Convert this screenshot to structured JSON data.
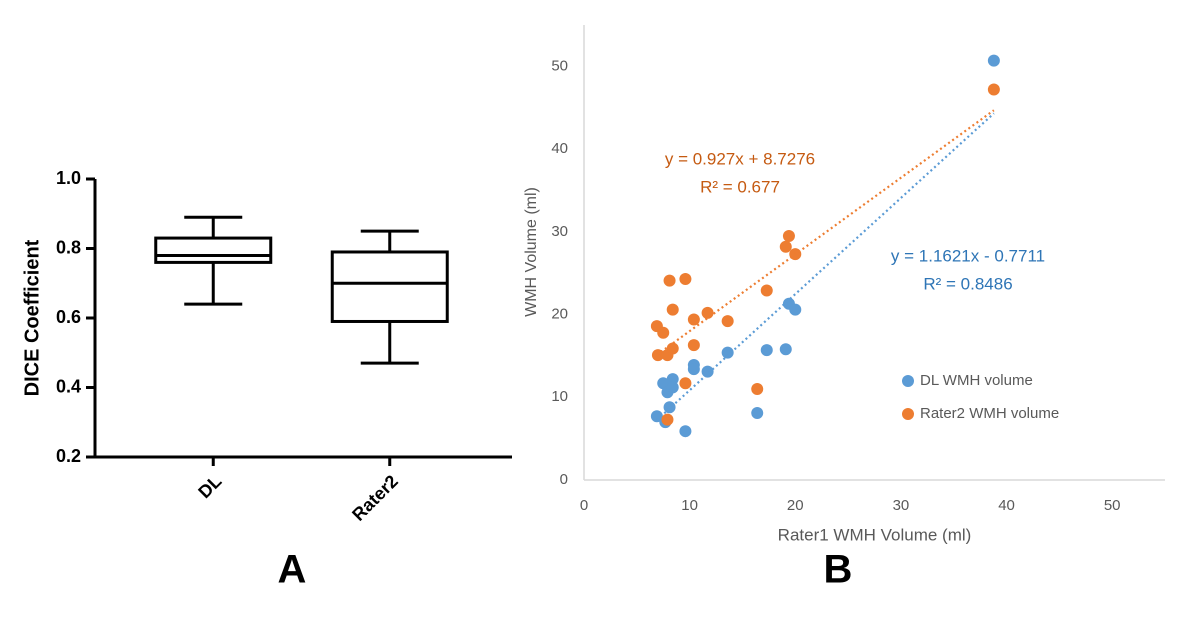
{
  "chart_data": [
    {
      "type": "box",
      "panel_label": "A",
      "y_label": "DICE Coefficient",
      "categories": [
        "DL",
        "Rater2"
      ],
      "boxes": [
        {
          "min": 0.64,
          "q1": 0.76,
          "median": 0.78,
          "q3": 0.83,
          "max": 0.89
        },
        {
          "min": 0.47,
          "q1": 0.59,
          "median": 0.7,
          "q3": 0.79,
          "max": 0.85
        }
      ],
      "color": "#000000",
      "ylim": [
        0.2,
        1.0
      ],
      "yticks": [
        0.2,
        0.4,
        0.6,
        0.8,
        {
          "value": 1,
          "label": "1.0"
        }
      ]
    },
    {
      "type": "scatter",
      "panel_label": "B",
      "x_label": "Rater1 WMH Volume (ml)",
      "y_label": "WMH Volume (ml)",
      "xlim": [
        0,
        55
      ],
      "xticks": [
        0,
        10,
        20,
        30,
        40,
        50
      ],
      "ylim": [
        0,
        55
      ],
      "yticks": [
        0,
        10,
        20,
        30,
        40,
        50
      ],
      "legend": "right",
      "series": [
        {
          "name": "DL WMH volume",
          "color": "#5b9bd5",
          "x": [
            6.9,
            7.7,
            7.5,
            7.9,
            8.4,
            8.4,
            8.1,
            9.6,
            10.4,
            10.4,
            11.7,
            13.6,
            16.4,
            17.3,
            19.1,
            19.4,
            20.0,
            38.8
          ],
          "values": [
            7.7,
            7.0,
            11.7,
            10.6,
            12.2,
            11.2,
            8.8,
            5.9,
            13.9,
            13.4,
            13.1,
            15.4,
            8.1,
            15.7,
            15.8,
            21.3,
            20.6,
            50.7
          ],
          "trendline": {
            "slope": 1.1621,
            "intercept": -0.7711,
            "equation": "y = 1.1621x - 0.7711",
            "r2": "R² = 0.8486",
            "text_color": "#2e75b6"
          }
        },
        {
          "name": "Rater2 WMH volume",
          "color": "#ed7d31",
          "x": [
            6.9,
            7.5,
            7.0,
            7.9,
            7.9,
            8.1,
            8.4,
            8.4,
            9.6,
            9.6,
            10.4,
            10.4,
            11.7,
            13.6,
            16.4,
            17.3,
            19.1,
            19.4,
            20.0,
            38.8
          ],
          "values": [
            18.6,
            17.8,
            15.1,
            15.1,
            7.3,
            24.1,
            20.6,
            15.9,
            24.3,
            11.7,
            19.4,
            16.3,
            20.2,
            19.2,
            11.0,
            22.9,
            28.2,
            29.5,
            27.3,
            47.2
          ],
          "trendline": {
            "slope": 0.927,
            "intercept": 8.7276,
            "equation": "y = 0.927x + 8.7276",
            "r2": "R² = 0.677",
            "text_color": "#c55a11"
          }
        }
      ]
    }
  ]
}
